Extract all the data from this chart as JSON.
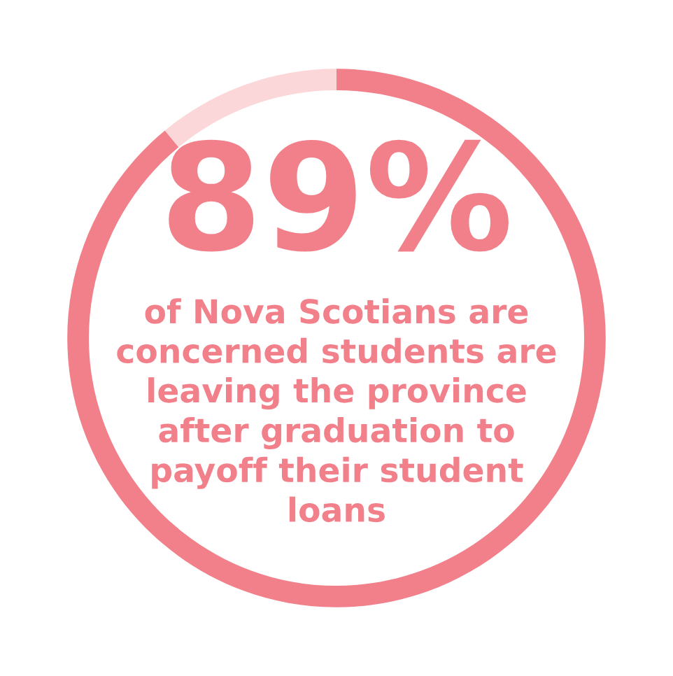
{
  "chart_data": {
    "type": "donut",
    "categories": [
      null,
      null
    ],
    "values": [
      89,
      11
    ],
    "colors": [
      "#f2808a",
      "#fcd7d9"
    ],
    "value_labels": [
      "89%",
      null
    ],
    "annotations": [
      "of Nova Scotians are\nconcerned students are\nleaving the province\nafter graduation to\npayoff their student\nloans"
    ]
  }
}
